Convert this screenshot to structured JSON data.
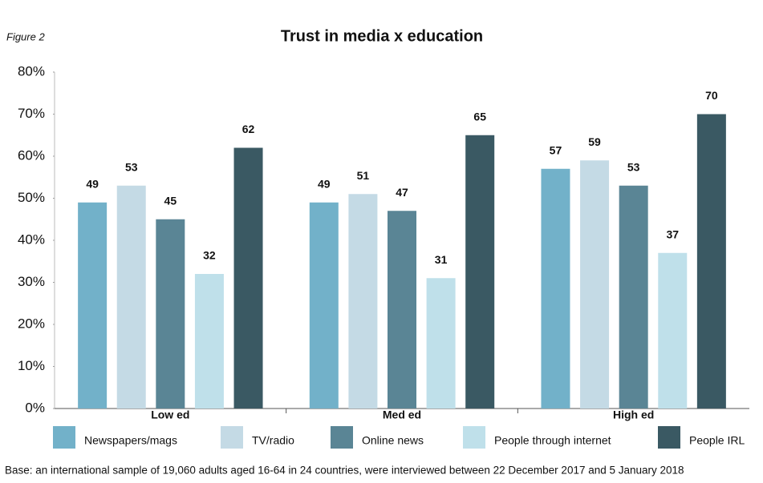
{
  "figure_label": "Figure 2",
  "footnote": "Base: an international sample of 19,060 adults aged 16-64 in 24 countries, were interviewed between 22 December 2017 and 5 January 2018",
  "chart_data": {
    "type": "bar",
    "title": "Trust in media x education",
    "categories": [
      "Low ed",
      "Med ed",
      "High ed"
    ],
    "series": [
      {
        "name": "Newspapers/mags",
        "color": "#72b1c9",
        "values": [
          49,
          49,
          57
        ]
      },
      {
        "name": "TV/radio",
        "color": "#c4dae5",
        "values": [
          53,
          51,
          59
        ]
      },
      {
        "name": "Online news",
        "color": "#5a8595",
        "values": [
          45,
          47,
          53
        ]
      },
      {
        "name": "People through internet",
        "color": "#bfe0ea",
        "values": [
          32,
          31,
          37
        ]
      },
      {
        "name": "People IRL",
        "color": "#3a5963",
        "values": [
          62,
          65,
          70
        ]
      }
    ],
    "ylim": [
      0,
      80
    ],
    "yticks": [
      {
        "value": 0,
        "label": "0%"
      },
      {
        "value": 10,
        "label": "10%"
      },
      {
        "value": 20,
        "label": "20%"
      },
      {
        "value": 30,
        "label": "30%"
      },
      {
        "value": 40,
        "label": "40%"
      },
      {
        "value": 50,
        "label": "50%"
      },
      {
        "value": 60,
        "label": "60%"
      },
      {
        "value": 70,
        "label": "70%"
      },
      {
        "value": 80,
        "label": "80%"
      }
    ],
    "legend": "bottom"
  }
}
